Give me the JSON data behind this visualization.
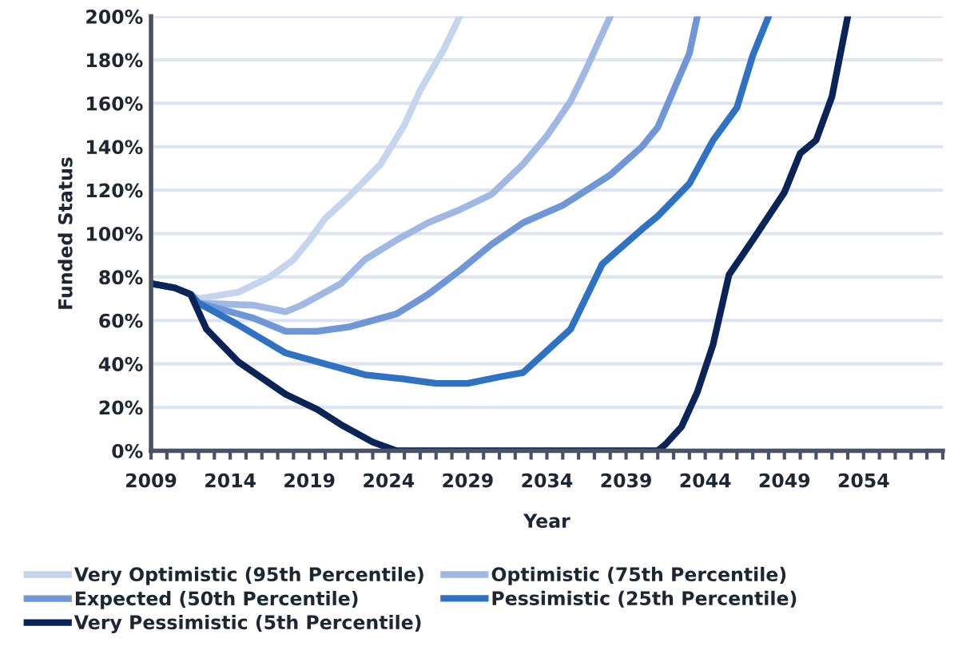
{
  "chart_data": {
    "type": "line",
    "xlabel": "Year",
    "ylabel": "Funded Status",
    "xlim": [
      2009,
      2059
    ],
    "ylim": [
      0,
      200
    ],
    "xticks": [
      2009,
      {
        "value": 2010,
        "label": null
      },
      {
        "value": 2011,
        "label": null
      },
      {
        "value": 2012,
        "label": null
      },
      {
        "value": 2013,
        "label": null
      },
      2014,
      {
        "value": 2015,
        "label": null
      },
      {
        "value": 2016,
        "label": null
      },
      {
        "value": 2017,
        "label": null
      },
      {
        "value": 2018,
        "label": null
      },
      2019,
      {
        "value": 2020,
        "label": null
      },
      {
        "value": 2021,
        "label": null
      },
      {
        "value": 2022,
        "label": null
      },
      {
        "value": 2023,
        "label": null
      },
      2024,
      {
        "value": 2025,
        "label": null
      },
      {
        "value": 2026,
        "label": null
      },
      {
        "value": 2027,
        "label": null
      },
      {
        "value": 2028,
        "label": null
      },
      2029,
      {
        "value": 2030,
        "label": null
      },
      {
        "value": 2031,
        "label": null
      },
      {
        "value": 2032,
        "label": null
      },
      {
        "value": 2033,
        "label": null
      },
      2034,
      {
        "value": 2035,
        "label": null
      },
      {
        "value": 2036,
        "label": null
      },
      {
        "value": 2037,
        "label": null
      },
      {
        "value": 2038,
        "label": null
      },
      2039,
      {
        "value": 2040,
        "label": null
      },
      {
        "value": 2041,
        "label": null
      },
      {
        "value": 2042,
        "label": null
      },
      {
        "value": 2043,
        "label": null
      },
      2044,
      {
        "value": 2045,
        "label": null
      },
      {
        "value": 2046,
        "label": null
      },
      {
        "value": 2047,
        "label": null
      },
      {
        "value": 2048,
        "label": null
      },
      2049,
      {
        "value": 2050,
        "label": null
      },
      {
        "value": 2051,
        "label": null
      },
      {
        "value": 2052,
        "label": null
      },
      {
        "value": 2053,
        "label": null
      },
      2054,
      {
        "value": 2055,
        "label": null
      },
      {
        "value": 2056,
        "label": null
      },
      {
        "value": 2057,
        "label": null
      },
      {
        "value": 2058,
        "label": null
      },
      {
        "value": 2059,
        "label": null
      }
    ],
    "yticks": [
      {
        "value": 0,
        "label": "0%"
      },
      {
        "value": 20,
        "label": "20%"
      },
      {
        "value": 40,
        "label": "40%"
      },
      {
        "value": 60,
        "label": "60%"
      },
      {
        "value": 80,
        "label": "80%"
      },
      {
        "value": 100,
        "label": "100%"
      },
      {
        "value": 120,
        "label": "120%"
      },
      {
        "value": 140,
        "label": "140%"
      },
      {
        "value": 160,
        "label": "160%"
      },
      {
        "value": 180,
        "label": "180%"
      },
      {
        "value": 200,
        "label": "200%"
      }
    ],
    "grid": "y",
    "legend": "bottom",
    "marker": "none",
    "line_style": "solid",
    "series": [
      {
        "name": "Very Optimistic (95th Percentile)",
        "color": "#c5d5ee",
        "x": [
          2009,
          2010.5,
          2011.5,
          2012,
          2014.5,
          2016.5,
          2018,
          2019,
          2020,
          2021.5,
          2023.5,
          2025,
          2026,
          2027.5,
          2028.5
        ],
        "values": [
          77,
          75,
          72,
          70,
          73,
          80,
          88,
          97,
          107,
          117,
          132,
          150,
          166,
          185,
          200
        ]
      },
      {
        "name": "Optimistic (75th Percentile)",
        "color": "#9fb9e4",
        "x": [
          2009,
          2010.5,
          2011.5,
          2012,
          2015.5,
          2017.5,
          2018.5,
          2021,
          2022.5,
          2024.5,
          2026.5,
          2028.5,
          2030.5,
          2032.5,
          2034,
          2035.5,
          2036.5,
          2038
        ],
        "values": [
          77,
          75,
          72,
          68,
          67,
          64,
          67,
          77,
          88,
          97,
          105,
          111,
          118,
          132,
          145,
          161,
          176,
          200
        ]
      },
      {
        "name": "Expected (50th Percentile)",
        "color": "#6f96d6",
        "x": [
          2009,
          2010.5,
          2011.5,
          2012,
          2015.5,
          2017.5,
          2019.5,
          2021.5,
          2024.5,
          2026.5,
          2028.5,
          2030.5,
          2032.5,
          2035,
          2038,
          2040,
          2041,
          2043,
          2043.5
        ],
        "values": [
          77,
          75,
          72,
          68,
          61,
          55,
          55,
          57,
          63,
          72,
          83,
          95,
          105,
          113,
          127,
          140,
          149,
          183,
          200
        ]
      },
      {
        "name": "Pessimistic (25th Percentile)",
        "color": "#2f72c4",
        "x": [
          2009,
          2010.5,
          2011.5,
          2012,
          2014.5,
          2017.5,
          2020,
          2022.5,
          2025,
          2027,
          2029,
          2031,
          2032.5,
          2034,
          2035.5,
          2037.5,
          2040,
          2041,
          2043,
          2044.5,
          2046,
          2047,
          2048
        ],
        "values": [
          77,
          75,
          72,
          68,
          58,
          45,
          40,
          35,
          33,
          31,
          31,
          34,
          36,
          46,
          56,
          86,
          102,
          108,
          123,
          143,
          158,
          182,
          200
        ]
      },
      {
        "name": "Very Pessimistic (5th Percentile)",
        "color": "#0b2457",
        "x": [
          2009,
          2010.5,
          2011.5,
          2012.5,
          2014.5,
          2017.5,
          2019.5,
          2021,
          2023,
          2024.5,
          2041,
          2041.5,
          2042.5,
          2043.5,
          2044.5,
          2045.5,
          2047,
          2049,
          2050,
          2051,
          2052,
          2053
        ],
        "values": [
          77,
          75,
          72,
          56,
          41,
          26,
          19,
          12,
          4,
          0,
          0,
          3,
          11,
          27,
          49,
          81,
          97,
          119,
          137,
          143,
          163,
          200
        ]
      }
    ]
  }
}
